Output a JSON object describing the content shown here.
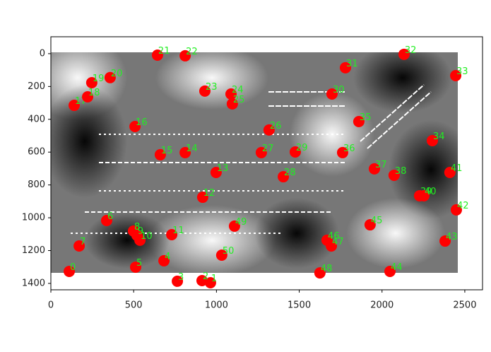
{
  "chart_data": {
    "type": "scatter",
    "xlim": [
      0,
      2607
    ],
    "ylim": [
      1439,
      -103
    ],
    "xticks": [
      0,
      500,
      1000,
      1500,
      2000,
      2500
    ],
    "yticks": [
      0,
      200,
      400,
      600,
      800,
      1000,
      1200,
      1400
    ],
    "color": "#ff0000",
    "label_color": "#22ee22",
    "point_labels": [
      "0",
      "1",
      "2",
      "3",
      "4",
      "5",
      "6",
      "7",
      "8",
      "9",
      "10",
      "11",
      "12",
      "13",
      "14",
      "15",
      "16",
      "17",
      "18",
      "19",
      "20",
      "21",
      "22",
      "23",
      "24",
      "25",
      "26",
      "27",
      "28",
      "29",
      "30",
      "31",
      "32",
      "33",
      "34",
      "35",
      "36",
      "37",
      "38",
      "39",
      "40",
      "41",
      "42",
      "43",
      "44",
      "45",
      "46",
      "47",
      "48",
      "49",
      "50"
    ],
    "x": [
      111,
      964,
      913,
      764,
      683,
      512,
      337,
      171,
      499,
      520,
      538,
      730,
      917,
      998,
      811,
      661,
      508,
      141,
      222,
      247,
      358,
      644,
      811,
      930,
      1088,
      1096,
      1318,
      1271,
      1404,
      1476,
      1698,
      1779,
      2133,
      2445,
      2304,
      1860,
      1762,
      1954,
      2073,
      2227,
      2253,
      2410,
      2449,
      2381,
      2048,
      1928,
      1668,
      1694,
      1625,
      1109,
      1032
    ],
    "y": [
      1327,
      1396,
      1383,
      1387,
      1262,
      1301,
      1017,
      1172,
      1081,
      1107,
      1137,
      1103,
      875,
      724,
      603,
      616,
      444,
      315,
      263,
      177,
      146,
      9,
      13,
      228,
      246,
      306,
      465,
      603,
      750,
      599,
      246,
      86,
      4,
      134,
      530,
      414,
      603,
      702,
      741,
      866,
      866,
      724,
      952,
      1142,
      1327,
      1043,
      1137,
      1172,
      1336,
      1051,
      1228
    ]
  }
}
